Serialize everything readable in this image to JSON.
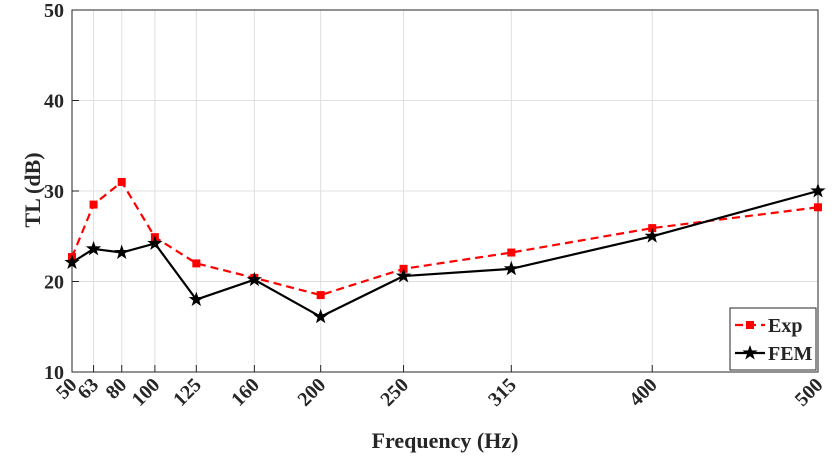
{
  "chart_data": {
    "type": "line",
    "xlabel": "Frequency (Hz)",
    "ylabel": "TL (dB)",
    "x": [
      50,
      63,
      80,
      100,
      125,
      160,
      200,
      250,
      315,
      400,
      500
    ],
    "series": [
      {
        "name": "Exp",
        "color": "#ff0000",
        "values": [
          22.7,
          28.5,
          31.0,
          24.9,
          22.0,
          20.4,
          18.5,
          21.4,
          23.2,
          25.9,
          28.2
        ]
      },
      {
        "name": "FEM",
        "color": "#000000",
        "values": [
          22.1,
          23.6,
          23.2,
          24.2,
          18.0,
          20.2,
          16.1,
          20.6,
          21.4,
          25.0,
          30.0
        ]
      }
    ],
    "xlim": [
      50,
      500
    ],
    "xticks": [
      50,
      63,
      80,
      100,
      125,
      160,
      200,
      250,
      315,
      400,
      500
    ],
    "ylim": [
      10,
      50
    ],
    "yticks": [
      10,
      20,
      30,
      40,
      50
    ],
    "grid": true,
    "legend": "lower right"
  }
}
